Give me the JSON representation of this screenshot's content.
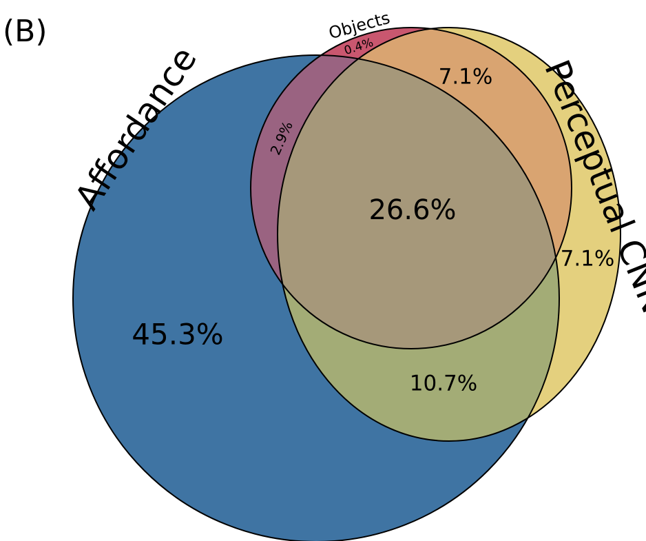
{
  "figure": {
    "panel_label": "(B)",
    "sets": {
      "affordance": {
        "label": "Affordance",
        "color": "#3F74A3"
      },
      "objects": {
        "label": "Objects",
        "color": "#C9576F"
      },
      "perceptual_cnn": {
        "label": "Perceptual CNN",
        "color": "#E4D07E"
      }
    },
    "regions": {
      "affordance_only": "45.3%",
      "objects_only": "0.4%",
      "affordance_objects": "2.9%",
      "objects_perceptual": "7.1%",
      "perceptual_only": "7.1%",
      "affordance_perceptual": "10.7%",
      "all_three": "26.6%"
    },
    "outline_color": "#000000"
  }
}
